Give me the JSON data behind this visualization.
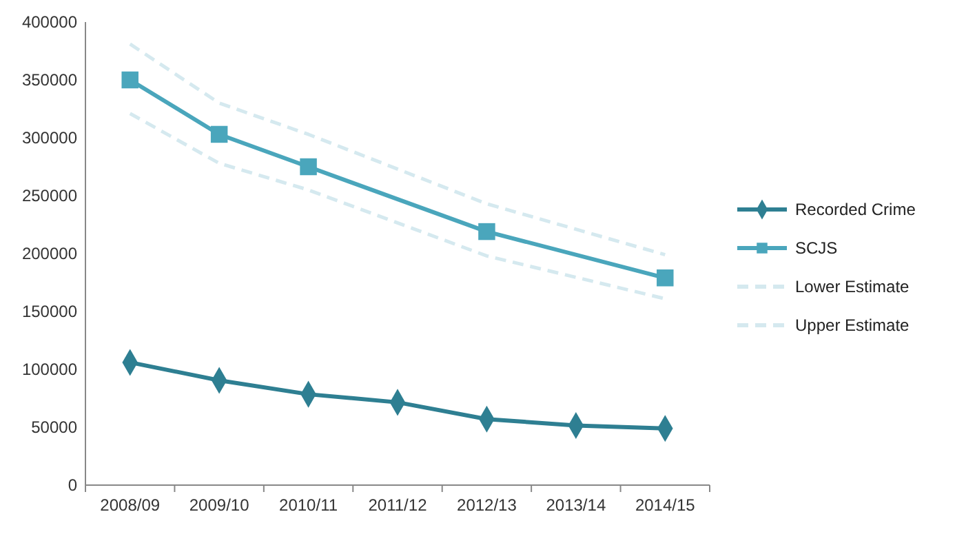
{
  "chart_data": {
    "type": "line",
    "categories": [
      "2008/09",
      "2009/10",
      "2010/11",
      "2011/12",
      "2012/13",
      "2013/14",
      "2014/15"
    ],
    "series": [
      {
        "name": "Recorded Crime",
        "color": "#2e7f92",
        "marker": "diamond",
        "line_style": "solid",
        "values": [
          106000,
          90500,
          78500,
          71500,
          57000,
          51500,
          49000
        ]
      },
      {
        "name": "SCJS",
        "color": "#4aa6bc",
        "marker": "square",
        "line_style": "solid",
        "values": [
          350000,
          303000,
          275000,
          null,
          219000,
          null,
          179000
        ]
      },
      {
        "name": "Lower Estimate",
        "color": "#d5e9ef",
        "marker": "none",
        "line_style": "dashed",
        "values": [
          321000,
          278000,
          255000,
          null,
          198000,
          null,
          161000
        ]
      },
      {
        "name": "Upper Estimate",
        "color": "#d5e9ef",
        "marker": "none",
        "line_style": "dashed",
        "values": [
          381000,
          330000,
          303000,
          null,
          243000,
          null,
          199000
        ]
      }
    ],
    "ylim": [
      0,
      400000
    ],
    "yticks": [
      0,
      50000,
      100000,
      150000,
      200000,
      250000,
      300000,
      350000,
      400000
    ],
    "grid": false,
    "legend": "right"
  }
}
